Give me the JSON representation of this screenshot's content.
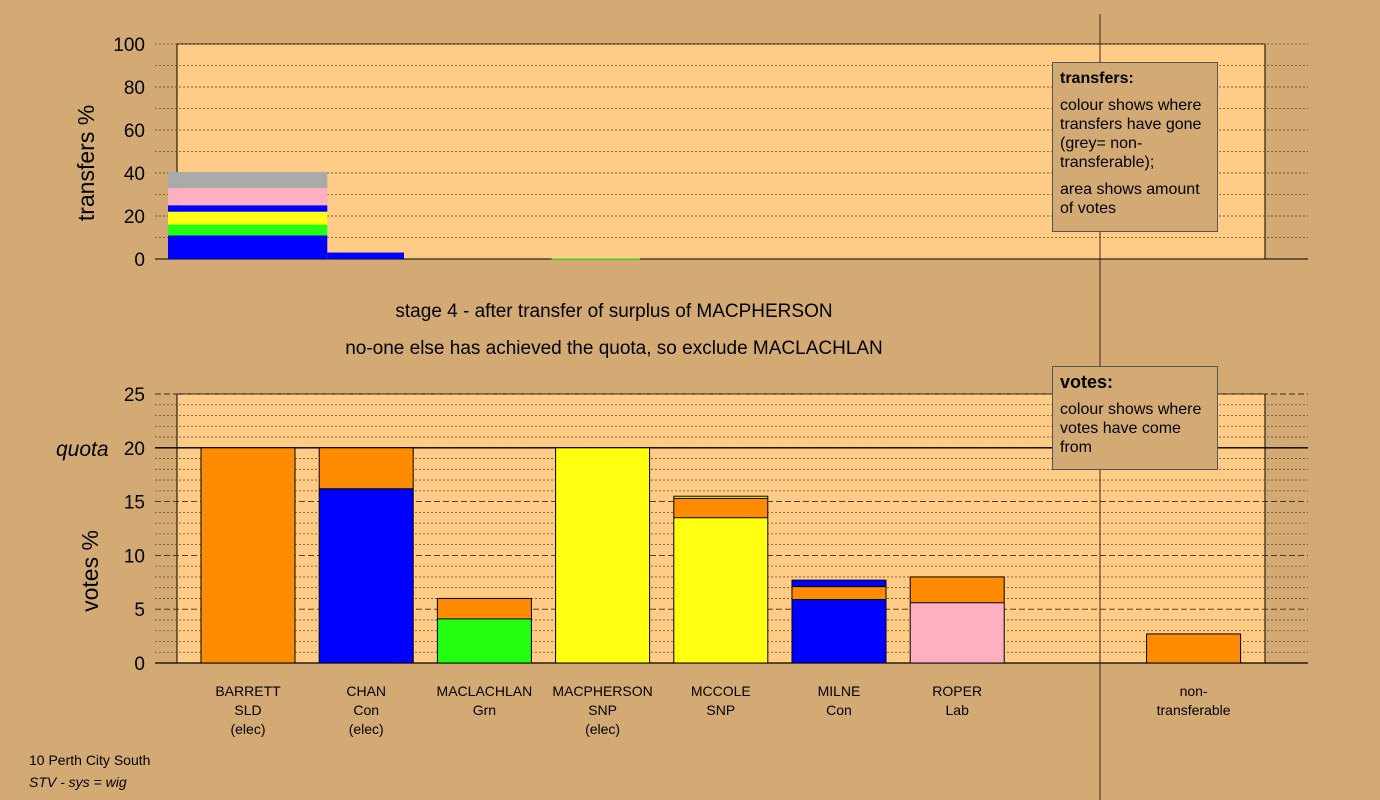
{
  "stage": {
    "line1": "stage 4 - after transfer of surplus of MACPHERSON",
    "line2": "no-one else has achieved the quota, so exclude MACLACHLAN"
  },
  "legends": {
    "transfers": {
      "title": "transfers:",
      "p1": "colour shows where transfers have gone (grey= non-transferable);",
      "p2": "area shows amount of votes"
    },
    "votes": {
      "title": "votes:",
      "p1": "colour shows where votes have come from"
    }
  },
  "footer": {
    "line1": "10 Perth City South",
    "line2": "STV - sys = wig"
  },
  "colors": {
    "background": "#d4aa74",
    "plot_bg": "#ffcc88",
    "SLD": "#ff8c00",
    "Con": "#0000ff",
    "Grn": "#22ff11",
    "SNP": "#ffff11",
    "Lab": "#ffb0c0",
    "non_transferable": "#aaaaaa"
  },
  "chart_data": [
    {
      "type": "bar",
      "id": "transfers",
      "ylabel": "transfers %",
      "ylim": [
        0,
        100
      ],
      "yticks": [
        0,
        20,
        40,
        60,
        80,
        100
      ],
      "grid": true,
      "legend": "top-right",
      "bars": [
        {
          "x": [
            0,
            1.35
          ],
          "segments": [
            {
              "to": "Con",
              "value": 11
            },
            {
              "to": "Grn",
              "value": 5
            },
            {
              "to": "SNP",
              "value": 6
            },
            {
              "to": "Con",
              "value": 3
            },
            {
              "to": "Lab",
              "value": 8
            },
            {
              "to": "non_transferable",
              "value": 7.5
            }
          ]
        },
        {
          "x": [
            1.35,
            2.0
          ],
          "segments": [
            {
              "to": "Con",
              "value": 3
            }
          ]
        },
        {
          "x": [
            3.25,
            4.0
          ],
          "segments": [
            {
              "to": "Grn",
              "value": 0.3
            }
          ]
        }
      ]
    },
    {
      "type": "bar",
      "id": "votes",
      "ylabel": "votes %",
      "ylim": [
        0,
        25
      ],
      "yticks": [
        0,
        5,
        10,
        15,
        20,
        25
      ],
      "quota": 20,
      "quota_label": "quota",
      "grid": true,
      "legend": "top-right",
      "categories": [
        [
          "BARRETT",
          "SLD",
          "(elec)"
        ],
        [
          "CHAN",
          "Con",
          "(elec)"
        ],
        [
          "MACLACHLAN",
          "Grn"
        ],
        [
          "MACPHERSON",
          "SNP",
          "(elec)"
        ],
        [
          "MCCOLE",
          "SNP"
        ],
        [
          "MILNE",
          "Con"
        ],
        [
          "ROPER",
          "Lab"
        ],
        [
          "",
          ""
        ],
        [
          "non-",
          "transferable"
        ]
      ],
      "series": [
        {
          "candidate": "BARRETT",
          "segments": [
            {
              "from": "SLD",
              "value": 20
            }
          ]
        },
        {
          "candidate": "CHAN",
          "segments": [
            {
              "from": "Con",
              "value": 16.2
            },
            {
              "from": "SLD",
              "value": 3.8
            }
          ]
        },
        {
          "candidate": "MACLACHLAN",
          "segments": [
            {
              "from": "Grn",
              "value": 4.1
            },
            {
              "from": "SLD",
              "value": 1.9
            }
          ]
        },
        {
          "candidate": "MACPHERSON",
          "segments": [
            {
              "from": "SNP",
              "value": 20
            }
          ]
        },
        {
          "candidate": "MCCOLE",
          "segments": [
            {
              "from": "SNP",
              "value": 13.5
            },
            {
              "from": "SLD",
              "value": 1.8
            },
            {
              "from": "SNP",
              "value": 0.2
            }
          ]
        },
        {
          "candidate": "MILNE",
          "segments": [
            {
              "from": "Con",
              "value": 5.9
            },
            {
              "from": "SLD",
              "value": 1.2
            },
            {
              "from": "Con",
              "value": 0.6
            }
          ]
        },
        {
          "candidate": "ROPER",
          "segments": [
            {
              "from": "Lab",
              "value": 5.6
            },
            {
              "from": "SLD",
              "value": 2.4
            }
          ]
        },
        {
          "candidate": "",
          "segments": []
        },
        {
          "candidate": "non-transferable",
          "segments": [
            {
              "from": "SLD",
              "value": 2.7
            }
          ]
        }
      ]
    }
  ]
}
